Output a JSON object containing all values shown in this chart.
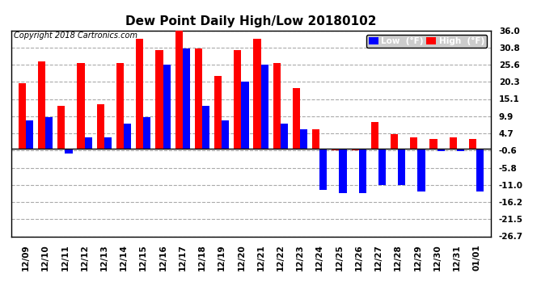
{
  "title": "Dew Point Daily High/Low 20180102",
  "copyright": "Copyright 2018 Cartronics.com",
  "ylabel_right_ticks": [
    36.0,
    30.8,
    25.6,
    20.3,
    15.1,
    9.9,
    4.7,
    -0.6,
    -5.8,
    -11.0,
    -16.2,
    -21.5,
    -26.7
  ],
  "dates": [
    "12/09",
    "12/10",
    "12/11",
    "12/12",
    "12/13",
    "12/14",
    "12/15",
    "12/16",
    "12/17",
    "12/18",
    "12/19",
    "12/20",
    "12/21",
    "12/22",
    "12/23",
    "12/24",
    "12/25",
    "12/26",
    "12/27",
    "12/28",
    "12/29",
    "12/30",
    "12/31",
    "01/01"
  ],
  "high": [
    20.0,
    26.5,
    13.0,
    26.0,
    13.5,
    26.0,
    33.5,
    30.0,
    36.0,
    30.5,
    22.0,
    30.0,
    33.5,
    26.0,
    18.5,
    6.0,
    -0.5,
    -0.5,
    8.0,
    4.5,
    3.5,
    3.0,
    3.5,
    3.0
  ],
  "low": [
    8.5,
    9.5,
    -1.5,
    3.5,
    3.5,
    7.5,
    9.5,
    25.5,
    30.5,
    13.0,
    8.5,
    20.5,
    25.5,
    7.5,
    6.0,
    -12.5,
    -13.5,
    -13.5,
    -11.0,
    -11.0,
    -13.0,
    -0.8,
    -0.8,
    -13.0
  ],
  "high_color": "#ff0000",
  "low_color": "#0000ff",
  "bg_color": "#ffffff",
  "grid_color": "#aaaaaa",
  "ylim_min": -26.7,
  "ylim_max": 36.0,
  "bar_width": 0.38,
  "figwidth": 6.9,
  "figheight": 3.75,
  "dpi": 100
}
